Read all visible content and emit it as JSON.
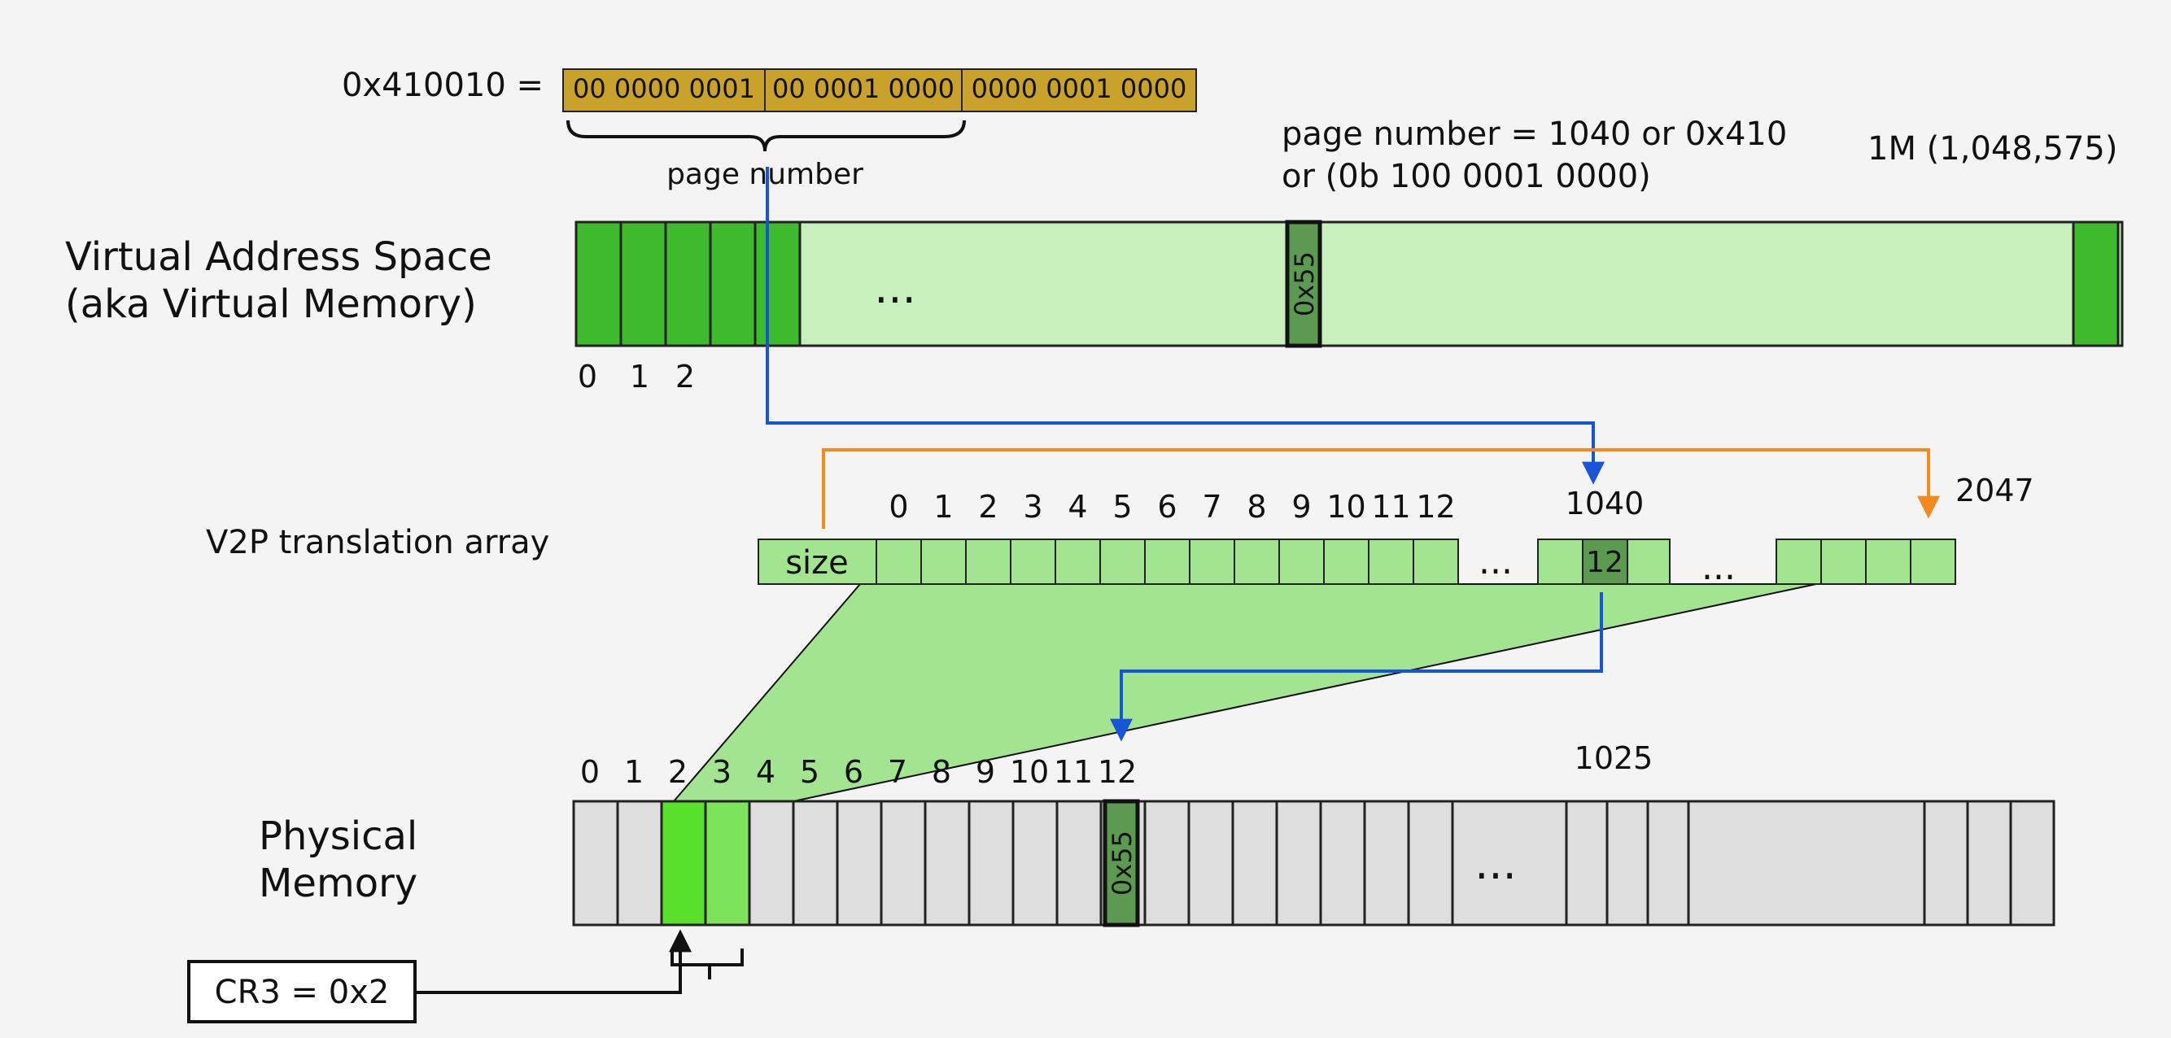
{
  "address": {
    "label": "0x410010 =",
    "bits": [
      "00 0000 0001",
      "00 0001 0000",
      "0000 0001 0000"
    ],
    "brace_label": "page number"
  },
  "notes": {
    "page_number_line1": "page number = 1040 or 0x410",
    "page_number_line2": "or (0b 100 0001 0000)",
    "virtual_size": "1M (1,048,575)"
  },
  "virtual_memory": {
    "title_line1": "Virtual Address Space",
    "title_line2": "(aka Virtual Memory)",
    "ellipsis": "...",
    "highlight_page": "0x55",
    "index_labels": [
      "0",
      "1",
      "2"
    ]
  },
  "v2p": {
    "title": "V2P translation array",
    "size_label": "size",
    "index_labels": [
      "0",
      "1",
      "2",
      "3",
      "4",
      "5",
      "6",
      "7",
      "8",
      "9",
      "10",
      "11",
      "12"
    ],
    "ellipsis_1": "...",
    "ellipsis_2": "...",
    "entry_index": "1040",
    "entry_value": "12",
    "last_index": "2047"
  },
  "physical_memory": {
    "title_line1": "Physical",
    "title_line2": "Memory",
    "index_labels": [
      "0",
      "1",
      "2",
      "3",
      "4",
      "5",
      "6",
      "7",
      "8",
      "9",
      "10",
      "11",
      "12"
    ],
    "highlight_page": "0x55",
    "frame_label": "1025",
    "ellipsis": "...",
    "cr3_label": "CR3 = 0x2"
  },
  "colors": {
    "gold": "#c8a22a",
    "vm_dark": "#3dbb2c",
    "vm_light": "#c8f0bc",
    "highlight": "#5c9a52",
    "v2p_cell": "#a3e491",
    "pm_cell": "#dedede",
    "pm_green": "#59e02a",
    "pm_green2": "#7ce35a",
    "blue_arrow": "#1755d8",
    "orange_arrow": "#f28a1e"
  }
}
